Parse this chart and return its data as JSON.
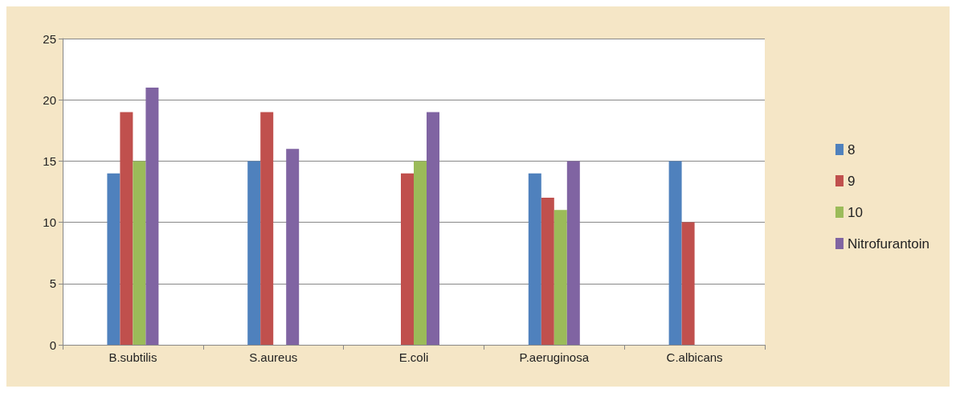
{
  "chart_data": {
    "type": "bar",
    "categories": [
      "B.subtilis",
      "S.aureus",
      "E.coli",
      "P.aeruginosa",
      "C.albicans"
    ],
    "series": [
      {
        "name": "8",
        "color": "#4f81bd",
        "values": [
          14,
          15,
          0,
          14,
          15
        ]
      },
      {
        "name": "9",
        "color": "#c0504d",
        "values": [
          19,
          19,
          14,
          12,
          10
        ]
      },
      {
        "name": "10",
        "color": "#9bbb59",
        "values": [
          15,
          0,
          15,
          11,
          0
        ]
      },
      {
        "name": "Nitrofurantoin",
        "color": "#8064a2",
        "values": [
          21,
          16,
          19,
          15,
          0
        ]
      }
    ],
    "ylim": [
      0,
      25
    ],
    "yticks": [
      0,
      5,
      10,
      15,
      20,
      25
    ],
    "grid": "y",
    "legend": "right"
  }
}
